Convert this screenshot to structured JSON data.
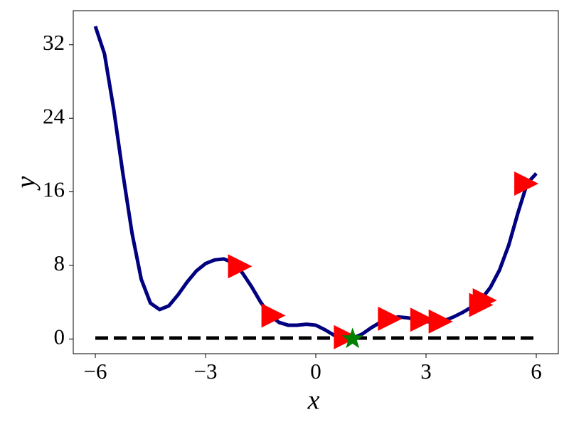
{
  "chart_data": {
    "type": "line",
    "xlabel": "x",
    "ylabel": "y",
    "xlim": [
      -6.6,
      6.6
    ],
    "ylim": [
      -1.6,
      35.7
    ],
    "xticks": [
      {
        "value": -6,
        "label": "−6"
      },
      {
        "value": -3,
        "label": "−3"
      },
      0,
      3,
      6
    ],
    "yticks": [
      0,
      8,
      16,
      24,
      32
    ],
    "series": [
      {
        "color": "#000080",
        "x": [
          -6,
          -5.75,
          -5.5,
          -5.25,
          -5,
          -4.75,
          -4.5,
          -4.25,
          -4,
          -3.75,
          -3.5,
          -3.25,
          -3,
          -2.75,
          -2.5,
          -2.25,
          -2,
          -1.75,
          -1.5,
          -1.25,
          -1,
          -0.75,
          -0.5,
          -0.25,
          0,
          0.25,
          0.5,
          0.75,
          1,
          1.25,
          1.5,
          1.75,
          2,
          2.25,
          2.5,
          2.75,
          3,
          3.25,
          3.5,
          3.75,
          4,
          4.25,
          4.5,
          4.75,
          5,
          5.25,
          5.5,
          5.75,
          6
        ],
        "values": [
          34,
          31,
          25,
          18,
          11.5,
          6.5,
          3.9,
          3.2,
          3.6,
          4.8,
          6.2,
          7.4,
          8.2,
          8.6,
          8.7,
          8.3,
          7.2,
          5.7,
          4.0,
          2.6,
          1.8,
          1.5,
          1.5,
          1.6,
          1.5,
          1.0,
          0.4,
          0.1,
          0.1,
          0.5,
          1.2,
          1.8,
          2.2,
          2.4,
          2.3,
          2.1,
          1.9,
          1.8,
          2.0,
          2.4,
          2.9,
          3.5,
          4.3,
          5.6,
          7.5,
          10.2,
          13.7,
          16.9,
          18.0
        ]
      }
    ],
    "markers": {
      "color": "#ff0000",
      "x": [
        -2.06,
        -1.15,
        0.82,
        2.02,
        2.9,
        3.4,
        4.5,
        4.6,
        5.73
      ],
      "values": [
        7.9,
        2.55,
        0.2,
        2.2,
        2.1,
        1.9,
        3.7,
        4.2,
        16.9
      ]
    },
    "optimum": {
      "color": "#008000",
      "x": 1.0,
      "value": 0.0
    },
    "reference": {
      "color": "#000000",
      "x": [
        -6,
        6
      ],
      "values": [
        0.1,
        0.1
      ]
    }
  }
}
